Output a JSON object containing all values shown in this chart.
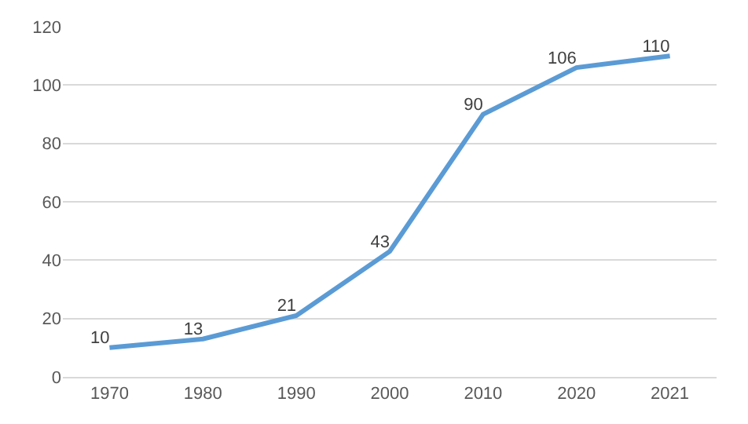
{
  "chart_data": {
    "type": "line",
    "categories": [
      "1970",
      "1980",
      "1990",
      "2000",
      "2010",
      "2020",
      "2021"
    ],
    "series": [
      {
        "color": "#5b9bd5",
        "values": [
          10,
          13,
          21,
          43,
          90,
          106,
          110
        ]
      }
    ],
    "ylim": [
      0,
      120
    ],
    "yticks": [
      0,
      20,
      40,
      60,
      80,
      100,
      120
    ],
    "grid": "y",
    "data_labels": true,
    "marker": "none",
    "line_style": "solid"
  }
}
